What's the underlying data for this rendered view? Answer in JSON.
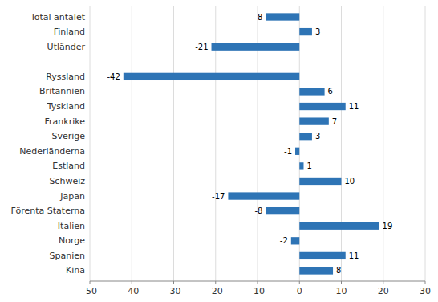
{
  "chart_data": {
    "type": "bar",
    "orientation": "horizontal",
    "categories": [
      "Total antalet",
      "Finland",
      "Utländer",
      null,
      "Ryssland",
      "Britannien",
      "Tyskland",
      "Frankrike",
      "Sverige",
      "Nederländerna",
      "Estland",
      "Schweiz",
      "Japan",
      "Förenta Staterna",
      "Italien",
      "Norge",
      "Spanien",
      "Kina"
    ],
    "values": [
      -8,
      3,
      -21,
      null,
      -42,
      6,
      11,
      7,
      3,
      -1,
      1,
      10,
      -17,
      -8,
      19,
      -2,
      11,
      8
    ],
    "color": "#2E74B5",
    "xlim": [
      -50,
      30
    ],
    "xticks": [
      -50,
      -40,
      -30,
      -20,
      -10,
      0,
      10,
      20,
      30
    ],
    "grid": true,
    "data_labels": true
  }
}
